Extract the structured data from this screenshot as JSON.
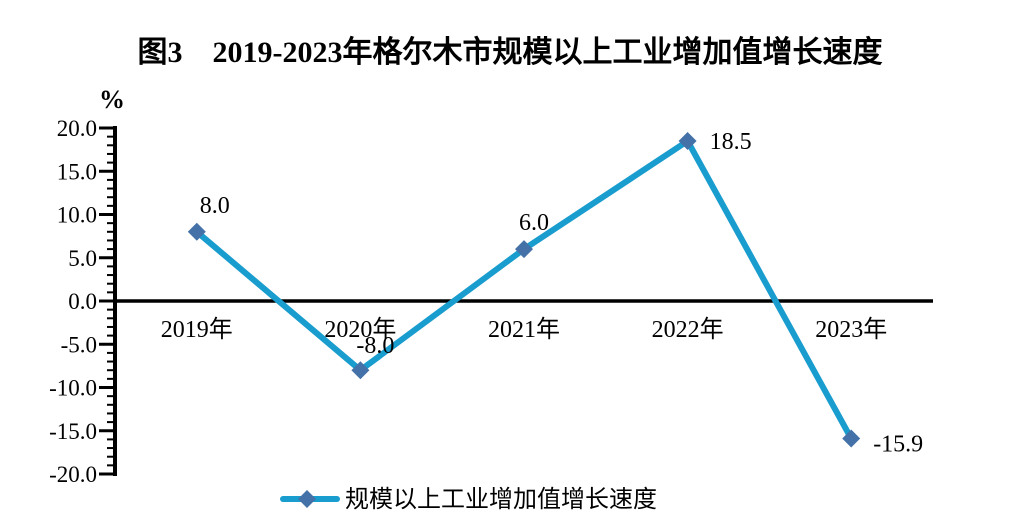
{
  "title": "图3　2019-2023年格尔木市规模以上工业增加值增长速度",
  "y_axis_unit": "%",
  "legend": {
    "label": "规模以上工业增加值增长速度"
  },
  "colors": {
    "line": "#199CCE",
    "marker": "#4472A8",
    "axis": "#000000",
    "text": "#000000",
    "background": "#FFFFFF"
  },
  "chart_data": {
    "type": "line",
    "title": "图3　2019-2023年格尔木市规模以上工业增加值增长速度",
    "categories": [
      "2019年",
      "2020年",
      "2021年",
      "2022年",
      "2023年"
    ],
    "series": [
      {
        "name": "规模以上工业增加值增长速度",
        "values": [
          8.0,
          -8.0,
          6.0,
          18.5,
          -15.9
        ]
      }
    ],
    "data_labels": [
      "8.0",
      "-8.0",
      "6.0",
      "18.5",
      "-15.9"
    ],
    "ylabel": "%",
    "ylim": [
      -20.0,
      20.0
    ],
    "y_major_step": 5.0,
    "y_minor_step": 1.0,
    "y_tick_labels": [
      "20.0",
      "15.0",
      "10.0",
      "5.0",
      "0.0",
      "-5.0",
      "-10.0",
      "-15.0",
      "-20.0"
    ],
    "grid": false,
    "legend_position": "bottom",
    "marker_shape": "diamond"
  }
}
